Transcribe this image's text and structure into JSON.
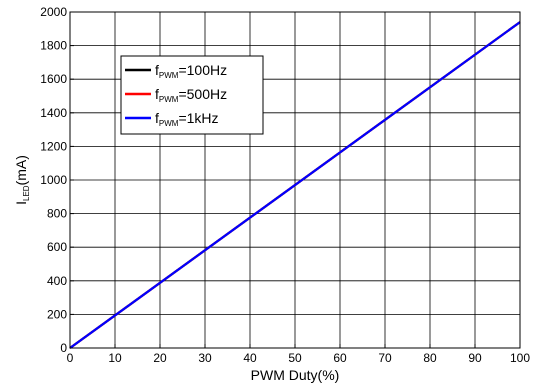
{
  "chart_data": {
    "type": "line",
    "title": "",
    "xlabel": "PWM Duty(%)",
    "ylabel": {
      "main": "I",
      "sub": "LED",
      "unit": "(mA)"
    },
    "xlim": [
      0,
      100
    ],
    "ylim": [
      0,
      2000
    ],
    "x_ticks": [
      "0",
      "10",
      "20",
      "30",
      "40",
      "50",
      "60",
      "70",
      "80",
      "90",
      "100"
    ],
    "y_ticks": [
      "0",
      "200",
      "400",
      "600",
      "800",
      "1000",
      "1200",
      "1400",
      "1600",
      "1800",
      "2000"
    ],
    "grid": true,
    "legend_position": "upper-left",
    "series": [
      {
        "name_main": "f",
        "name_sub": "PWM",
        "name_rest": "=100Hz",
        "color": "#000000",
        "x": [
          0,
          100
        ],
        "y": [
          0,
          1940
        ]
      },
      {
        "name_main": "f",
        "name_sub": "PWM",
        "name_rest": "=500Hz",
        "color": "#ff0000",
        "x": [
          0,
          100
        ],
        "y": [
          0,
          1940
        ]
      },
      {
        "name_main": "f",
        "name_sub": "PWM",
        "name_rest": "=1kHz",
        "color": "#0000ff",
        "x": [
          0,
          100
        ],
        "y": [
          0,
          1940
        ]
      }
    ]
  }
}
